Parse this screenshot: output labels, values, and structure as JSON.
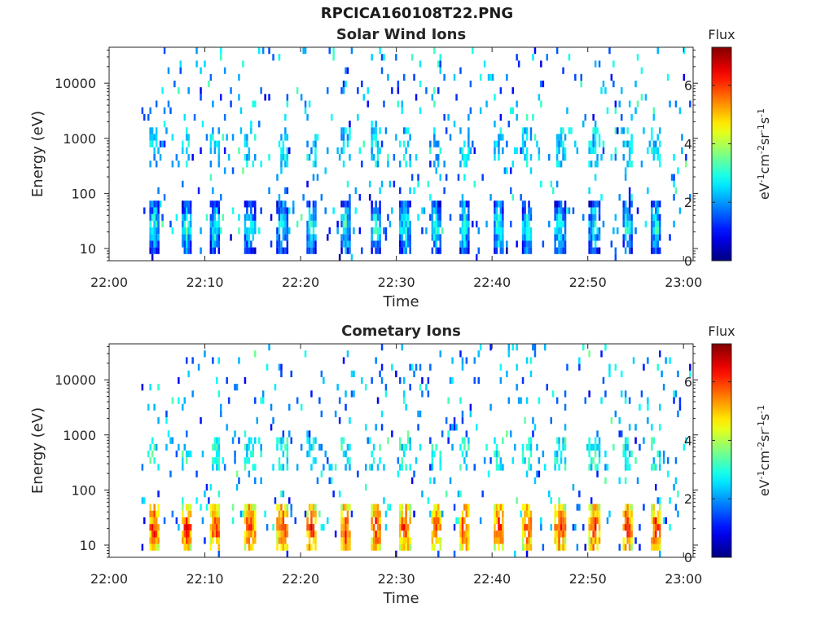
{
  "figure_title": "RPCICA160108T22.PNG",
  "chart_data": [
    {
      "type": "heatmap",
      "title": "Solar Wind Ions",
      "xlabel": "Time",
      "ylabel": "Energy (eV)",
      "x_ticks": [
        "22:00",
        "22:10",
        "22:20",
        "22:30",
        "22:40",
        "22:50",
        "23:00"
      ],
      "x_range": [
        "22:00",
        "23:01"
      ],
      "y_scale": "log",
      "y_ticks": [
        10,
        100,
        1000,
        10000
      ],
      "y_tick_labels": [
        "10",
        "100",
        "1000",
        "10000"
      ],
      "y_range": [
        6,
        45000
      ],
      "colorbar": {
        "title": "Flux",
        "unit_label": "eV-1cm-2sr-1s-1",
        "ticks": [
          0,
          2,
          4,
          6
        ],
        "range": [
          0,
          7.3
        ],
        "colormap": "jet"
      },
      "pattern": {
        "description": "sparse counts; bursts roughly every 3.2 min",
        "burst_times_min": [
          4.6,
          8,
          11,
          14.6,
          18,
          21,
          24.6,
          27.8,
          30.8,
          34,
          37,
          40.6,
          43.6,
          47,
          50.6,
          54,
          57
        ],
        "low_energy_peak_ev": 25,
        "low_energy_peak_flux": 3.2,
        "mid_energy_ev": [
          300,
          1500
        ],
        "mid_energy_flux": 2.4
      }
    },
    {
      "type": "heatmap",
      "title": "Cometary Ions",
      "xlabel": "Time",
      "ylabel": "Energy (eV)",
      "x_ticks": [
        "22:00",
        "22:10",
        "22:20",
        "22:30",
        "22:40",
        "22:50",
        "23:00"
      ],
      "x_range": [
        "22:00",
        "23:01"
      ],
      "y_scale": "log",
      "y_ticks": [
        10,
        100,
        1000,
        10000
      ],
      "y_tick_labels": [
        "10",
        "100",
        "1000",
        "10000"
      ],
      "y_range": [
        6,
        45000
      ],
      "colorbar": {
        "title": "Flux",
        "unit_label": "eV-1cm-2sr-1s-1",
        "ticks": [
          0,
          2,
          4,
          6
        ],
        "range": [
          0,
          7.3
        ],
        "colormap": "jet"
      },
      "pattern": {
        "description": "intense low-energy bursts roughly every 3.2 min",
        "burst_times_min": [
          4.6,
          8,
          11,
          14.6,
          18,
          21,
          24.6,
          27.8,
          30.8,
          34,
          37,
          40.6,
          43.6,
          47,
          50.6,
          54,
          57
        ],
        "low_energy_peak_ev": 20,
        "low_energy_peak_flux": 6.3,
        "mid_energy_ev": [
          200,
          1000
        ],
        "mid_energy_flux": 2.8
      }
    }
  ]
}
